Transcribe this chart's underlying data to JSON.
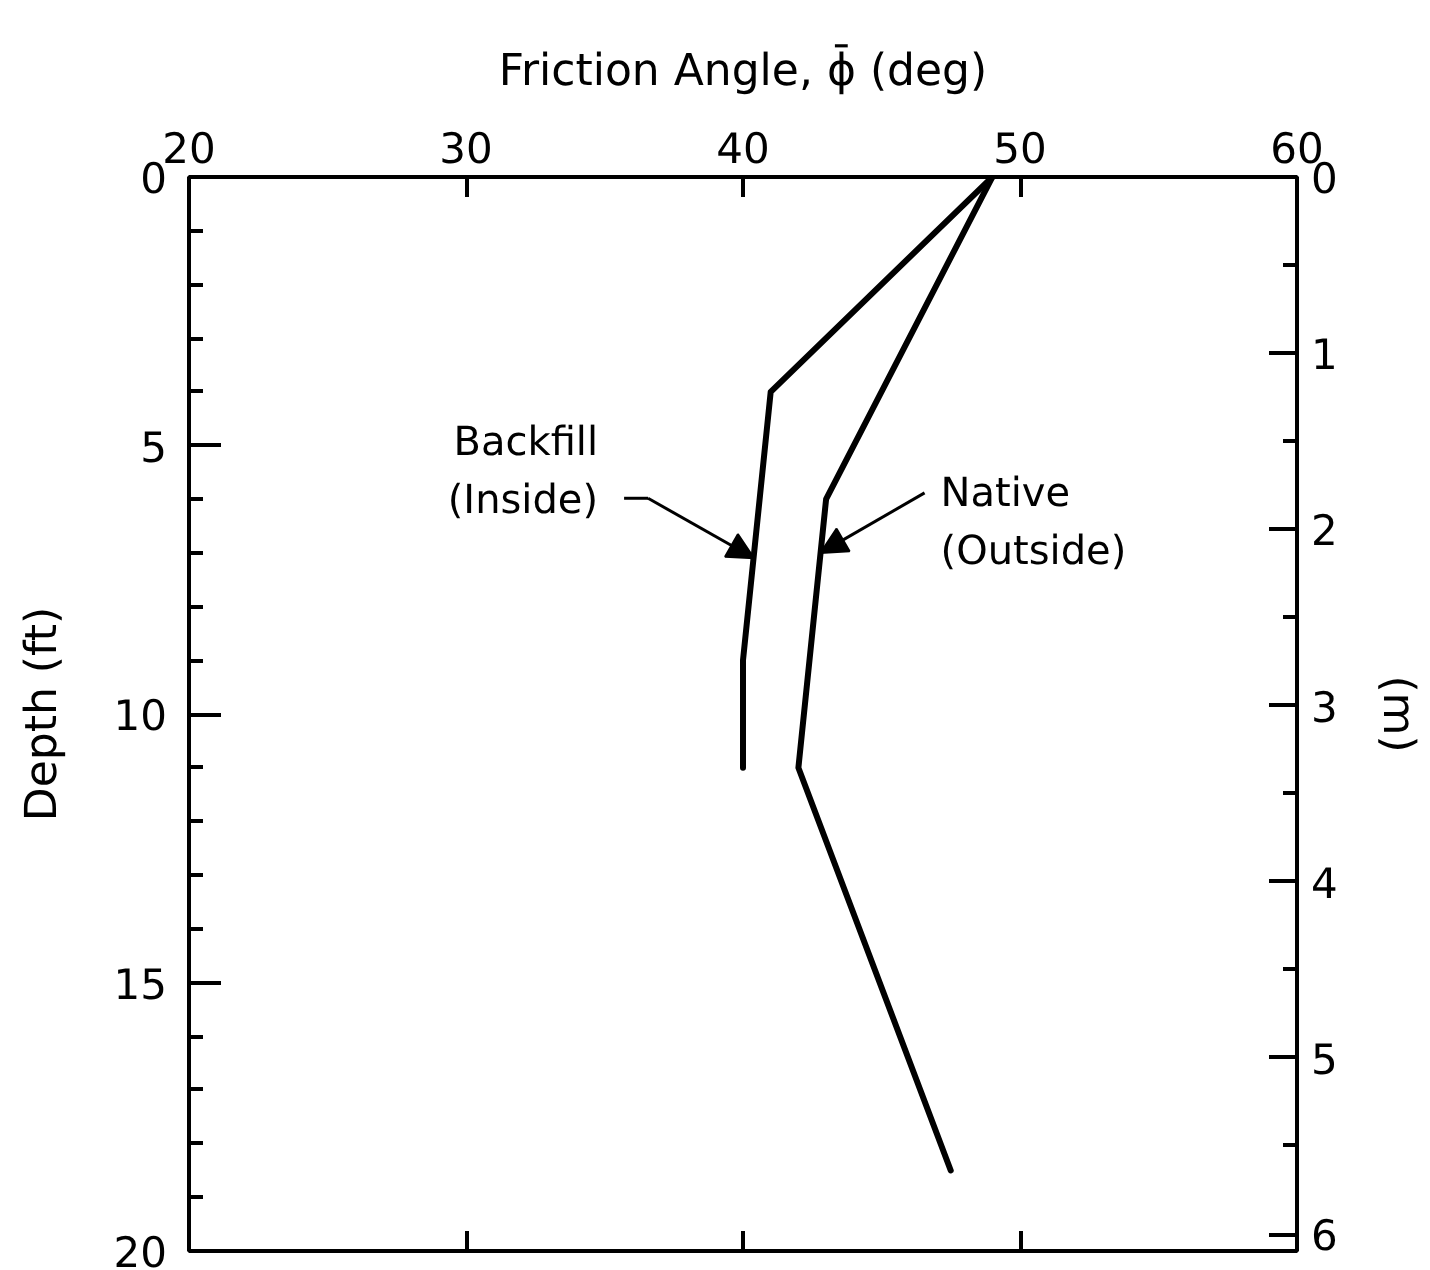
{
  "chart_data": {
    "type": "line",
    "xlabel": "Friction Angle, ϕ̄ (deg)",
    "ylabel": "Depth (ft)",
    "y2label": "(m)",
    "xlim": [
      20,
      60
    ],
    "xticks": [
      20,
      30,
      40,
      50,
      60
    ],
    "ylim": [
      20,
      0
    ],
    "yticks": [
      0,
      {
        "value": 1,
        "label": null
      },
      {
        "value": 2,
        "label": null
      },
      {
        "value": 3,
        "label": null
      },
      {
        "value": 4,
        "label": null
      },
      5,
      {
        "value": 6,
        "label": null
      },
      {
        "value": 7,
        "label": null
      },
      {
        "value": 8,
        "label": null
      },
      {
        "value": 9,
        "label": null
      },
      10,
      {
        "value": 11,
        "label": null
      },
      {
        "value": 12,
        "label": null
      },
      {
        "value": 13,
        "label": null
      },
      {
        "value": 14,
        "label": null
      },
      15,
      {
        "value": 16,
        "label": null
      },
      {
        "value": 17,
        "label": null
      },
      {
        "value": 18,
        "label": null
      },
      {
        "value": 19,
        "label": null
      },
      20
    ],
    "y2lim": [
      6.096,
      0
    ],
    "y2ticks": [
      0,
      {
        "value": 0.5,
        "label": null
      },
      1,
      {
        "value": 1.5,
        "label": null
      },
      2,
      {
        "value": 2.5,
        "label": null
      },
      3,
      {
        "value": 3.5,
        "label": null
      },
      4,
      {
        "value": 4.5,
        "label": null
      },
      5,
      {
        "value": 5.5,
        "label": null
      },
      6
    ],
    "series": [
      {
        "color": "#000000",
        "x": [
          49,
          41,
          40,
          40
        ],
        "values": [
          0,
          4,
          9,
          11
        ]
      },
      {
        "color": "#000000",
        "x": [
          49,
          43,
          42,
          47.5
        ],
        "values": [
          0,
          6,
          11,
          18.5
        ]
      }
    ],
    "annotations": [
      {
        "text": "Backfill\n(Inside)",
        "x": 40.4,
        "y": 7.1
      },
      {
        "text": "Native\n(Outside)",
        "x": 42.8,
        "y": 7
      }
    ]
  }
}
